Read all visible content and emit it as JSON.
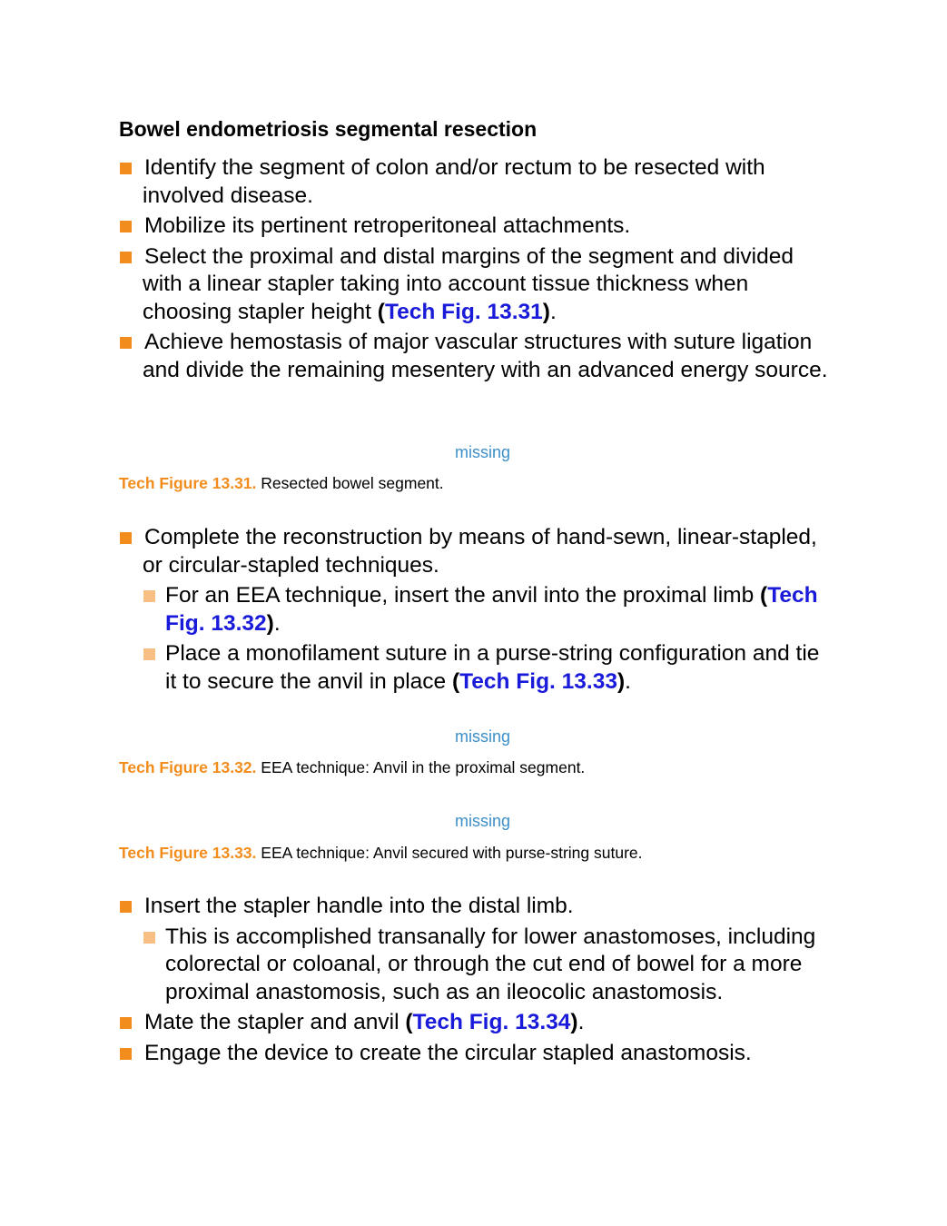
{
  "heading": "Bowel endometriosis segmental resection",
  "list1": [
    {
      "text": "Identify the segment of colon and/or rectum to be resected with involved disease."
    },
    {
      "text": "Mobilize its pertinent retroperitoneal attachments."
    },
    {
      "text_before": "Select the proximal and distal margins of the segment and divided with a linear stapler taking into account tissue thickness when choosing stapler height ",
      "paren_open": "(",
      "link": "Tech Fig. 13.31",
      "paren_close": ")",
      "text_after": "."
    },
    {
      "text": "Achieve hemostasis of major vascular structures with suture ligation and divide the remaining mesentery with an advanced energy source."
    }
  ],
  "figure1": {
    "placeholder": "missing",
    "label": "Tech Figure 13.31.",
    "caption": "Resected bowel segment."
  },
  "list2": [
    {
      "text": "Complete the reconstruction by means of hand-sewn, linear-stapled, or circular-stapled techniques."
    },
    {
      "text_before": "For an EEA technique, insert the anvil into the proximal limb ",
      "paren_open": "(",
      "link": "Tech Fig. 13.32",
      "paren_close": ")",
      "text_after": "."
    },
    {
      "text_before": "Place a monofilament suture in a purse-string configuration and tie it to secure the anvil in place ",
      "paren_open": "(",
      "link": "Tech Fig. 13.33",
      "paren_close": ")",
      "text_after": "."
    }
  ],
  "figure2": {
    "placeholder": "missing",
    "label": "Tech Figure 13.32.",
    "caption": "EEA technique: Anvil in the proximal segment."
  },
  "figure3": {
    "placeholder": "missing",
    "label": "Tech Figure 13.33.",
    "caption": "EEA technique: Anvil secured with purse-string suture."
  },
  "list3": [
    {
      "text": "Insert the stapler handle into the distal limb."
    },
    {
      "text": "This is accomplished transanally for lower anastomoses, including colorectal or coloanal, or through the cut end of bowel for a more proximal anastomosis, such as an ileocolic anastomosis."
    },
    {
      "text_before": "Mate the stapler and anvil ",
      "paren_open": "(",
      "link": "Tech Fig. 13.34",
      "paren_close": ")",
      "text_after": "."
    },
    {
      "text": "Engage the device to create the circular stapled anastomosis."
    }
  ],
  "colors": {
    "bullet_primary": "#f28c1c",
    "bullet_secondary": "#f8bf84",
    "link": "#1a1adb",
    "placeholder": "#3d8fc9",
    "caption_label": "#f28c1c"
  }
}
